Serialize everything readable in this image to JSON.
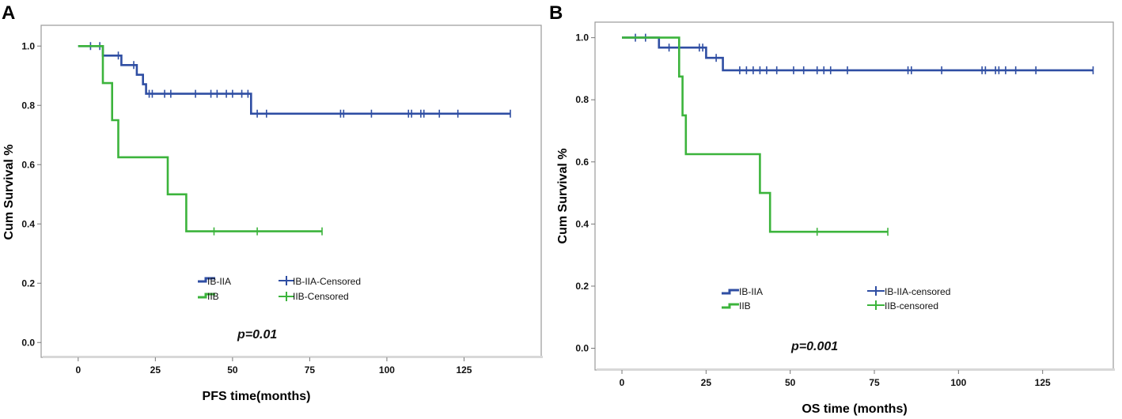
{
  "chart_data": [
    {
      "type": "line",
      "panel": "A",
      "xlabel": "PFS time(months)",
      "ylabel": "Cum Survival %",
      "xlim": [
        -12,
        150
      ],
      "ylim": [
        -0.05,
        1.07
      ],
      "xticks": [
        0,
        25,
        50,
        75,
        100,
        125
      ],
      "xtick_labels": [
        "0",
        "25",
        "50",
        "75",
        "100",
        "125"
      ],
      "yticks": [
        0,
        0.2,
        0.4,
        0.6,
        0.8,
        1.0
      ],
      "ytick_labels": [
        "0.0",
        "0.2",
        "0.4",
        "0.6",
        "0.8",
        "1.0"
      ],
      "p_value": "p=0.01",
      "legend": {
        "line_labels": [
          "IB-IIA",
          "IIB"
        ],
        "censored_labels": [
          "IB-IIA-Censored",
          "IIB-Censored"
        ]
      },
      "series": [
        {
          "name": "IB-IIA",
          "color": "#2f4ea3",
          "steps": [
            [
              0,
              1.0
            ],
            [
              8,
              1.0
            ],
            [
              8,
              0.968
            ],
            [
              14,
              0.968
            ],
            [
              14,
              0.936
            ],
            [
              19,
              0.936
            ],
            [
              19,
              0.903
            ],
            [
              21,
              0.903
            ],
            [
              21,
              0.871
            ],
            [
              22,
              0.871
            ],
            [
              22,
              0.839
            ],
            [
              56,
              0.839
            ],
            [
              56,
              0.772
            ],
            [
              140,
              0.772
            ]
          ],
          "censored": [
            [
              4,
              1.0
            ],
            [
              7,
              1.0
            ],
            [
              13,
              0.968
            ],
            [
              18,
              0.936
            ],
            [
              23,
              0.839
            ],
            [
              24,
              0.839
            ],
            [
              28,
              0.839
            ],
            [
              30,
              0.839
            ],
            [
              38,
              0.839
            ],
            [
              43,
              0.839
            ],
            [
              45,
              0.839
            ],
            [
              48,
              0.839
            ],
            [
              50,
              0.839
            ],
            [
              53,
              0.839
            ],
            [
              55,
              0.839
            ],
            [
              58,
              0.772
            ],
            [
              61,
              0.772
            ],
            [
              85,
              0.772
            ],
            [
              86,
              0.772
            ],
            [
              95,
              0.772
            ],
            [
              107,
              0.772
            ],
            [
              108,
              0.772
            ],
            [
              111,
              0.772
            ],
            [
              112,
              0.772
            ],
            [
              117,
              0.772
            ],
            [
              123,
              0.772
            ],
            [
              140,
              0.772
            ]
          ]
        },
        {
          "name": "IIB",
          "color": "#3cb43c",
          "steps": [
            [
              0,
              1.0
            ],
            [
              8,
              1.0
            ],
            [
              8,
              0.875
            ],
            [
              11,
              0.875
            ],
            [
              11,
              0.75
            ],
            [
              13,
              0.75
            ],
            [
              13,
              0.625
            ],
            [
              29,
              0.625
            ],
            [
              29,
              0.5
            ],
            [
              35,
              0.5
            ],
            [
              35,
              0.375
            ],
            [
              79,
              0.375
            ]
          ],
          "censored": [
            [
              44,
              0.375
            ],
            [
              58,
              0.375
            ],
            [
              79,
              0.375
            ]
          ]
        }
      ]
    },
    {
      "type": "line",
      "panel": "B",
      "xlabel": "OS time (months)",
      "ylabel": "Cum Survival %",
      "xlim": [
        -8,
        146
      ],
      "ylim": [
        -0.07,
        1.05
      ],
      "xticks": [
        0,
        25,
        50,
        75,
        100,
        125
      ],
      "xtick_labels": [
        "0",
        "25",
        "50",
        "75",
        "100",
        "125"
      ],
      "yticks": [
        0,
        0.2,
        0.4,
        0.6,
        0.8,
        1.0
      ],
      "ytick_labels": [
        "0.0",
        "0.2",
        "0.4",
        "0.6",
        "0.8",
        "1.0"
      ],
      "p_value": "p=0.001",
      "legend": {
        "line_labels": [
          "IB-IIA",
          "IIB"
        ],
        "censored_labels": [
          "IB-IIA-censored",
          "IIB-censored"
        ]
      },
      "series": [
        {
          "name": "IB-IIA",
          "color": "#2f4ea3",
          "steps": [
            [
              0,
              1.0
            ],
            [
              11,
              1.0
            ],
            [
              11,
              0.968
            ],
            [
              25,
              0.968
            ],
            [
              25,
              0.935
            ],
            [
              30,
              0.935
            ],
            [
              30,
              0.895
            ],
            [
              140,
              0.895
            ]
          ],
          "censored": [
            [
              4,
              1.0
            ],
            [
              7,
              1.0
            ],
            [
              14,
              0.968
            ],
            [
              17,
              0.968
            ],
            [
              23,
              0.968
            ],
            [
              24,
              0.968
            ],
            [
              28,
              0.935
            ],
            [
              35,
              0.895
            ],
            [
              37,
              0.895
            ],
            [
              39,
              0.895
            ],
            [
              41,
              0.895
            ],
            [
              43,
              0.895
            ],
            [
              46,
              0.895
            ],
            [
              51,
              0.895
            ],
            [
              54,
              0.895
            ],
            [
              58,
              0.895
            ],
            [
              60,
              0.895
            ],
            [
              62,
              0.895
            ],
            [
              67,
              0.895
            ],
            [
              85,
              0.895
            ],
            [
              86,
              0.895
            ],
            [
              95,
              0.895
            ],
            [
              107,
              0.895
            ],
            [
              108,
              0.895
            ],
            [
              111,
              0.895
            ],
            [
              112,
              0.895
            ],
            [
              114,
              0.895
            ],
            [
              117,
              0.895
            ],
            [
              123,
              0.895
            ],
            [
              140,
              0.895
            ]
          ]
        },
        {
          "name": "IIB",
          "color": "#3cb43c",
          "steps": [
            [
              0,
              1.0
            ],
            [
              17,
              1.0
            ],
            [
              17,
              0.875
            ],
            [
              18,
              0.875
            ],
            [
              18,
              0.75
            ],
            [
              19,
              0.75
            ],
            [
              19,
              0.625
            ],
            [
              41,
              0.625
            ],
            [
              41,
              0.5
            ],
            [
              44,
              0.5
            ],
            [
              44,
              0.375
            ],
            [
              79,
              0.375
            ]
          ],
          "censored": [
            [
              58,
              0.375
            ],
            [
              79,
              0.375
            ]
          ]
        }
      ]
    }
  ]
}
